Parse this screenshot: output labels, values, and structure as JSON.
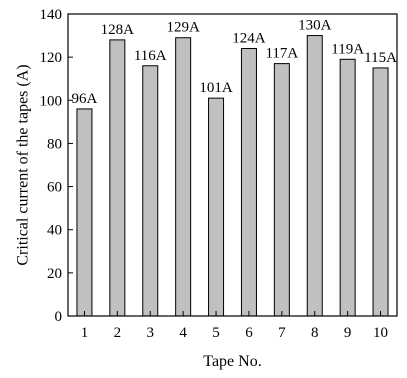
{
  "chart_data": {
    "type": "bar",
    "title": "",
    "xlabel": "Tape No.",
    "ylabel": "Critical current of the tapes (A)",
    "categories": [
      "1",
      "2",
      "3",
      "4",
      "5",
      "6",
      "7",
      "8",
      "9",
      "10"
    ],
    "values": [
      96,
      128,
      116,
      129,
      101,
      124,
      117,
      130,
      119,
      115
    ],
    "data_labels": [
      "96A",
      "128A",
      "116A",
      "129A",
      "101A",
      "124A",
      "117A",
      "130A",
      "119A",
      "115A"
    ],
    "ylim": [
      0,
      140
    ],
    "yticks": [
      "0",
      "20",
      "40",
      "60",
      "80",
      "100",
      "120",
      "140"
    ],
    "grid": false,
    "legend": "none",
    "colors": {
      "bar_fill": "#c0c0c0",
      "bar_stroke": "#000000",
      "axis": "#000000"
    }
  }
}
